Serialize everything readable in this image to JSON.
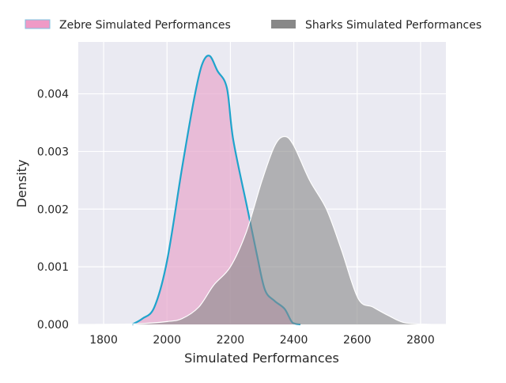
{
  "chart_data": {
    "type": "area",
    "title": "",
    "xlabel": "Simulated Performances",
    "ylabel": "Density",
    "xlim": [
      1720,
      2880
    ],
    "ylim": [
      0,
      0.0049
    ],
    "xticks": [
      1800,
      2000,
      2200,
      2400,
      2600,
      2800
    ],
    "xtick_labels": [
      "1800",
      "2000",
      "2200",
      "2400",
      "2600",
      "2800"
    ],
    "yticks": [
      0,
      0.001,
      0.002,
      0.003,
      0.004
    ],
    "ytick_labels": [
      "0.000",
      "0.001",
      "0.002",
      "0.003",
      "0.004"
    ],
    "grid": true,
    "legend_placement": "top, outside",
    "background": "#eaeaf2",
    "series": [
      {
        "name": "Zebre Simulated Performances",
        "fill": "#e7a6cc",
        "line": "#1fa4cc",
        "x": [
          1890,
          1922,
          1960,
          2000,
          2047,
          2085,
          2110,
          2134,
          2159,
          2189,
          2209,
          2254,
          2284,
          2309,
          2339,
          2371,
          2396,
          2421
        ],
        "y": [
          0,
          0.0001,
          0.0003,
          0.0011,
          0.0027,
          0.0039,
          0.0045,
          0.00466,
          0.0044,
          0.0041,
          0.0032,
          0.002,
          0.0012,
          0.0006,
          0.00041,
          0.00027,
          3e-05,
          0
        ]
      },
      {
        "name": "Sharks Simulated Performances",
        "fill": "#888888",
        "line": "#ffffff",
        "x": [
          1773,
          1900,
          2000,
          2047,
          2100,
          2147,
          2200,
          2250,
          2300,
          2340,
          2371,
          2400,
          2450,
          2503,
          2550,
          2603,
          2650,
          2700,
          2750,
          2832
        ],
        "y": [
          0,
          1e-05,
          5e-05,
          0.0001,
          0.0003,
          0.00068,
          0.001,
          0.0016,
          0.0025,
          0.0031,
          0.00326,
          0.0031,
          0.0025,
          0.002,
          0.0013,
          0.00045,
          0.0003,
          0.00015,
          3e-05,
          0
        ]
      }
    ]
  }
}
